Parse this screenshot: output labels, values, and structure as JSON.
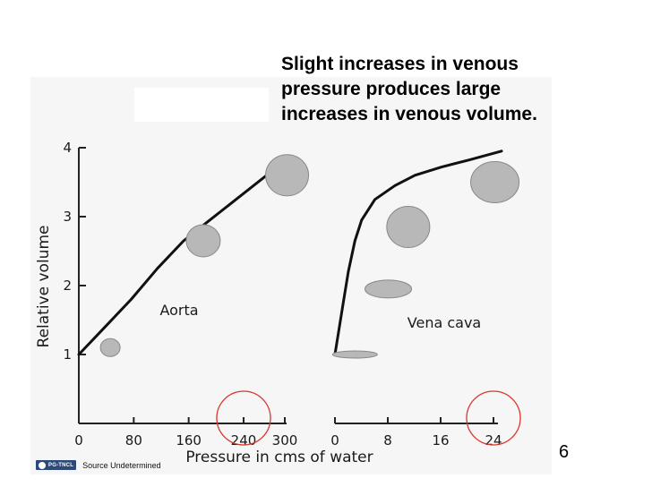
{
  "slide": {
    "caption_lines": [
      "Slight increases in venous",
      "pressure produces large",
      "increases in venous volume."
    ],
    "page_number": "6",
    "footer": {
      "badge_text": "PG-TNCL",
      "source_text": "Source Undetermined"
    }
  },
  "chart_data": {
    "type": "line",
    "xlabel": "Pressure in cms of water",
    "ylabel": "Relative volume",
    "colors": {
      "curve": "#111111",
      "axis": "#222222",
      "highlight_circle": "#d9362b",
      "blob": "#b8b8b8"
    },
    "y_ticks": [
      "1",
      "2",
      "3",
      "4"
    ],
    "ylim": [
      0,
      4.2
    ],
    "panels": [
      {
        "name": "Aorta",
        "xlim": [
          0,
          320
        ],
        "x_ticks": [
          "0",
          "80",
          "160",
          "240",
          "300"
        ],
        "x_tick_values": [
          0,
          80,
          160,
          240,
          300
        ],
        "highlight_tick": "240",
        "series": [
          {
            "name": "Aorta",
            "points": [
              [
                0,
                1.0
              ],
              [
                40,
                1.4
              ],
              [
                80,
                1.8
              ],
              [
                120,
                2.25
              ],
              [
                160,
                2.65
              ],
              [
                200,
                2.95
              ],
              [
                240,
                3.25
              ],
              [
                280,
                3.55
              ],
              [
                320,
                3.85
              ]
            ]
          }
        ],
        "blobs": [
          {
            "x": 48,
            "y": 1.1
          },
          {
            "x": 190,
            "y": 2.65
          },
          {
            "x": 318,
            "y": 3.6
          }
        ]
      },
      {
        "name": "Vena cava",
        "xlim": [
          0,
          25
        ],
        "x_ticks": [
          "0",
          "8",
          "16",
          "24"
        ],
        "x_tick_values": [
          0,
          8,
          16,
          24
        ],
        "highlight_tick": "24",
        "series": [
          {
            "name": "Vena cava",
            "points": [
              [
                0,
                1.0
              ],
              [
                1,
                1.6
              ],
              [
                2,
                2.2
              ],
              [
                3,
                2.65
              ],
              [
                4,
                2.95
              ],
              [
                6,
                3.25
              ],
              [
                9,
                3.45
              ],
              [
                12,
                3.6
              ],
              [
                16,
                3.72
              ],
              [
                20,
                3.82
              ],
              [
                25,
                3.95
              ]
            ]
          }
        ],
        "blobs": [
          {
            "x": 3,
            "y": 1.0
          },
          {
            "x": 8,
            "y": 1.95
          },
          {
            "x": 11,
            "y": 2.85
          },
          {
            "x": 24,
            "y": 3.5
          }
        ]
      }
    ]
  }
}
